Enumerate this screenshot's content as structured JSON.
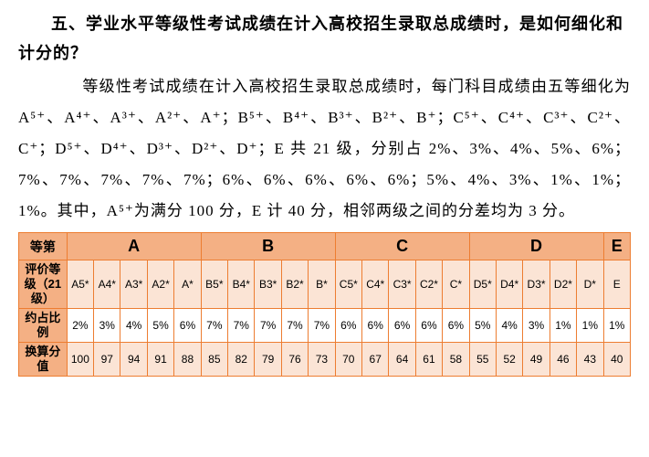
{
  "heading": "五、学业水平等级性考试成绩在计入高校招生录取总成绩时，是如何细化和计分的？",
  "para": "　　等级性考试成绩在计入高校招生录取总成绩时，每门科目成绩由五等细化为 A⁵⁺、A⁴⁺、A³⁺、A²⁺、A⁺；B⁵⁺、B⁴⁺、B³⁺、B²⁺、B⁺；C⁵⁺、C⁴⁺、C³⁺、C²⁺、C⁺；D⁵⁺、D⁴⁺、D³⁺、D²⁺、D⁺；E 共 21 级，分别占 2%、3%、4%、5%、6%；7%、7%、7%、7%、7%；6%、6%、6%、6%、6%；5%、4%、3%、1%、1%；1%。其中，A⁵⁺为满分 100 分，E 计 40 分，相邻两级之间的分差均为 3 分。",
  "table": {
    "col0_header": "等第",
    "groups": [
      "A",
      "B",
      "C",
      "D",
      "E"
    ],
    "row1_label": "评价等级（21级）",
    "row2_label": "约占比例",
    "row3_label": "换算分值",
    "grades": [
      "A5*",
      "A4*",
      "A3*",
      "A2*",
      "A*",
      "B5*",
      "B4*",
      "B3*",
      "B2*",
      "B*",
      "C5*",
      "C4*",
      "C3*",
      "C2*",
      "C*",
      "D5*",
      "D4*",
      "D3*",
      "D2*",
      "D*",
      "E"
    ],
    "props": [
      "2%",
      "3%",
      "4%",
      "5%",
      "6%",
      "7%",
      "7%",
      "7%",
      "7%",
      "7%",
      "6%",
      "6%",
      "6%",
      "6%",
      "6%",
      "5%",
      "4%",
      "3%",
      "1%",
      "1%",
      "1%"
    ],
    "scores": [
      "100",
      "97",
      "94",
      "91",
      "88",
      "85",
      "82",
      "79",
      "76",
      "73",
      "70",
      "67",
      "64",
      "61",
      "58",
      "55",
      "52",
      "49",
      "46",
      "43",
      "40"
    ],
    "border_color": "#ed7d31",
    "header_bg": "#f4b084",
    "odd_bg": "#fbe4d5",
    "even_bg": "#ffffff"
  }
}
